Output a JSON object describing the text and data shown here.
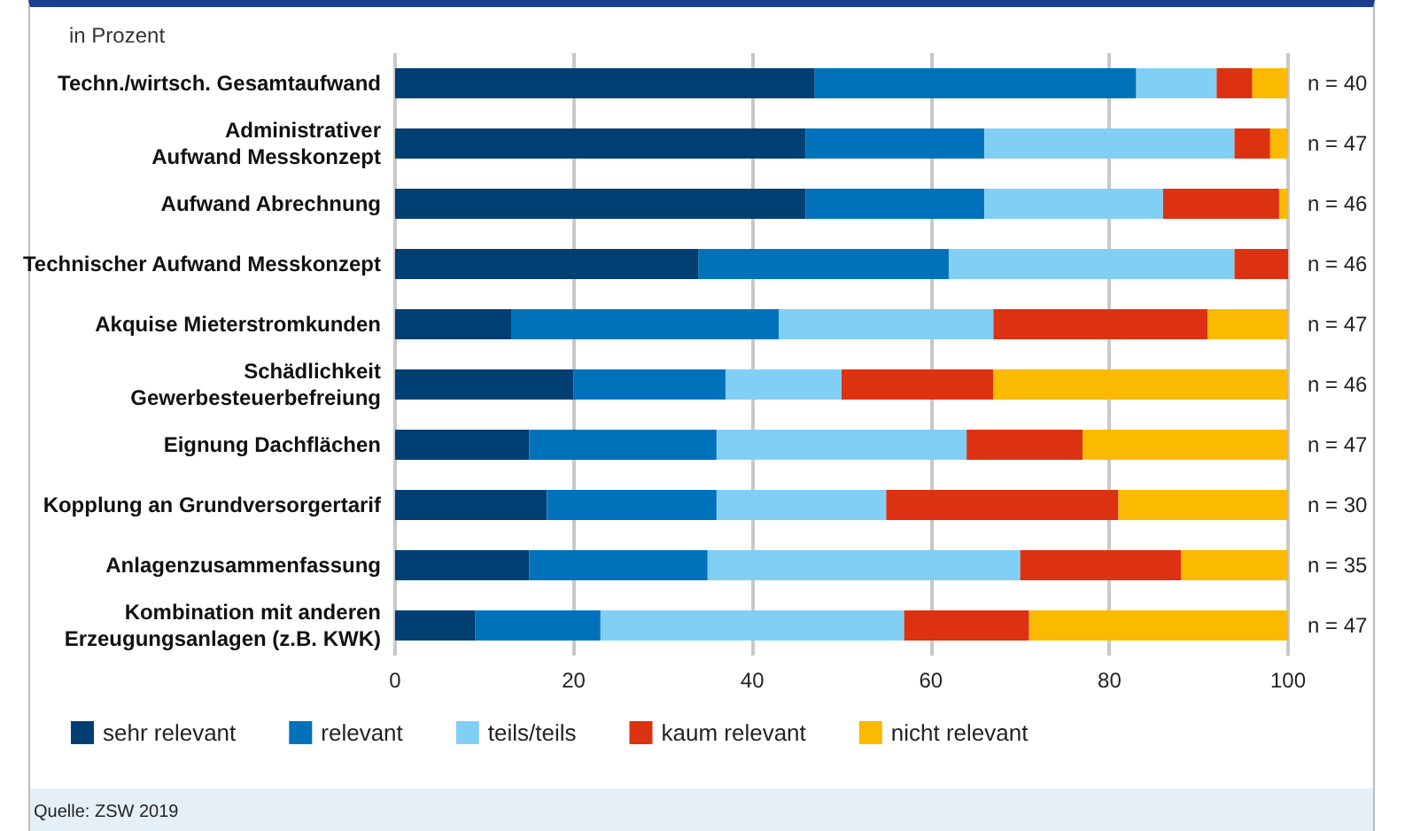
{
  "chart_data": {
    "type": "bar",
    "orientation": "horizontal",
    "stacked": true,
    "title": "in Prozent",
    "categories": [
      "Techn./wirtsch. Gesamtaufwand",
      "Administrativer\nAufwand Messkonzept",
      "Aufwand Abrechnung",
      "Technischer Aufwand Messkonzept",
      "Akquise Mieterstromkunden",
      "Schädlichkeit\nGewerbesteuerbefreiung",
      "Eignung Dachflächen",
      "Kopplung an Grundversorgertarif",
      "Anlagenzusammenfassung",
      "Kombination mit anderen\nErzeugungsanlagen (z.B. KWK)"
    ],
    "series": [
      {
        "name": "sehr relevant",
        "color": "#003f72",
        "values": [
          47,
          46,
          46,
          34,
          13,
          20,
          15,
          17,
          15,
          9
        ]
      },
      {
        "name": "relevant",
        "color": "#0072bc",
        "values": [
          36,
          20,
          20,
          28,
          30,
          17,
          21,
          19,
          20,
          14
        ]
      },
      {
        "name": "teils/teils",
        "color": "#82cff5",
        "values": [
          9,
          28,
          20,
          32,
          24,
          13,
          28,
          19,
          35,
          34
        ]
      },
      {
        "name": "kaum relevant",
        "color": "#dc3212",
        "values": [
          4,
          4,
          13,
          6,
          24,
          17,
          13,
          26,
          18,
          14
        ]
      },
      {
        "name": "nicht relevant",
        "color": "#fbb900",
        "values": [
          4,
          2,
          1,
          0,
          9,
          33,
          23,
          19,
          12,
          29
        ]
      }
    ],
    "xlim": [
      0,
      100
    ],
    "xticks": [
      0,
      20,
      40,
      60,
      80,
      100
    ],
    "grid": "x",
    "legend": "bottom left",
    "annotations": [
      "n = 40",
      "n = 47",
      "n = 46",
      "n = 46",
      "n = 47",
      "n = 46",
      "n = 47",
      "n = 30",
      "n = 35",
      "n = 47",
      "Quelle: ZSW 2019"
    ]
  }
}
